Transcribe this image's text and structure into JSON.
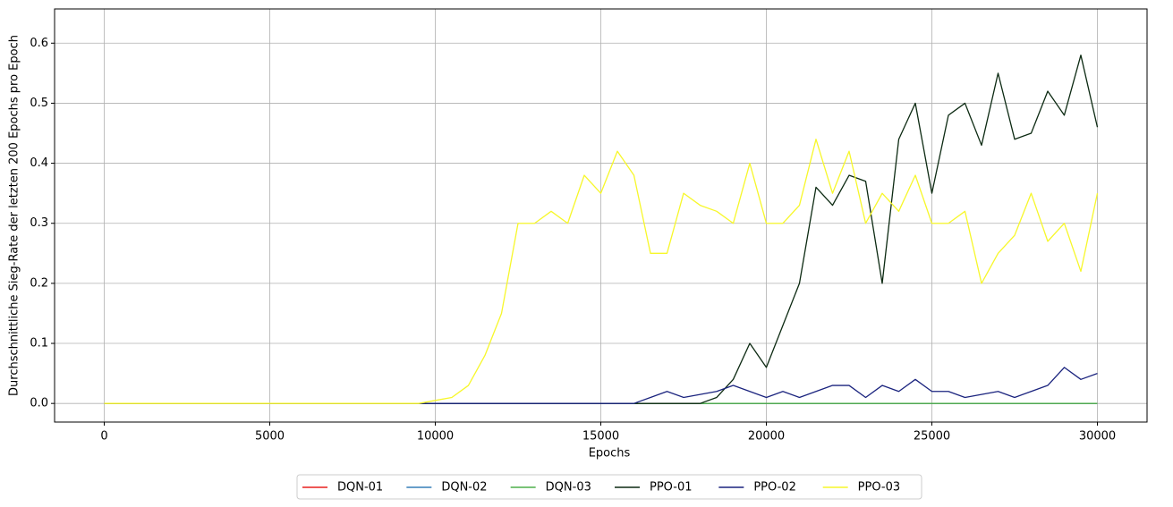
{
  "chart_data": {
    "type": "line",
    "xlabel": "Epochs",
    "ylabel": "Durchschnittliche Sieg-Rate der letzten 200 Epochs pro Epoch",
    "x": [
      0,
      500,
      1000,
      1500,
      2000,
      2500,
      3000,
      3500,
      4000,
      4500,
      5000,
      5500,
      6000,
      6500,
      7000,
      7500,
      8000,
      8500,
      9000,
      9500,
      10000,
      10500,
      11000,
      11500,
      12000,
      12500,
      13000,
      13500,
      14000,
      14500,
      15000,
      15500,
      16000,
      16500,
      17000,
      17500,
      18000,
      18500,
      19000,
      19500,
      20000,
      20500,
      21000,
      21500,
      22000,
      22500,
      23000,
      23500,
      24000,
      24500,
      25000,
      25500,
      26000,
      26500,
      27000,
      27500,
      28000,
      28500,
      29000,
      29500,
      30000
    ],
    "series": [
      {
        "name": "DQN-01",
        "color": "#e8201e",
        "values": [
          0,
          0,
          0,
          0,
          0,
          0,
          0,
          0,
          0,
          0,
          0,
          0,
          0,
          0,
          0,
          0,
          0,
          0,
          0,
          0,
          0,
          0,
          0,
          0,
          0,
          0,
          0,
          0,
          0,
          0,
          0,
          0,
          0,
          0,
          0,
          0,
          0,
          0,
          0,
          0,
          0,
          0,
          0,
          0,
          0,
          0,
          0,
          0,
          0,
          0,
          0,
          0,
          0,
          0,
          0,
          0,
          0,
          0,
          0,
          0,
          0
        ]
      },
      {
        "name": "DQN-02",
        "color": "#377eb8",
        "values": [
          0,
          0,
          0,
          0,
          0,
          0,
          0,
          0,
          0,
          0,
          0,
          0,
          0,
          0,
          0,
          0,
          0,
          0,
          0,
          0,
          0,
          0,
          0,
          0,
          0,
          0,
          0,
          0,
          0,
          0,
          0,
          0,
          0,
          0,
          0,
          0,
          0,
          0,
          0,
          0,
          0,
          0,
          0,
          0,
          0,
          0,
          0,
          0,
          0,
          0,
          0,
          0,
          0,
          0,
          0,
          0,
          0,
          0,
          0,
          0,
          0
        ]
      },
      {
        "name": "DQN-03",
        "color": "#4daf4a",
        "values": [
          0,
          0,
          0,
          0,
          0,
          0,
          0,
          0,
          0,
          0,
          0,
          0,
          0,
          0,
          0,
          0,
          0,
          0,
          0,
          0,
          0,
          0,
          0,
          0,
          0,
          0,
          0,
          0,
          0,
          0,
          0,
          0,
          0,
          0,
          0,
          0,
          0,
          0,
          0,
          0,
          0,
          0,
          0,
          0,
          0,
          0,
          0,
          0,
          0,
          0,
          0,
          0,
          0,
          0,
          0,
          0,
          0,
          0,
          0,
          0,
          0
        ]
      },
      {
        "name": "PPO-01",
        "color": "#0c2a12",
        "values": [
          0,
          0,
          0,
          0,
          0,
          0,
          0,
          0,
          0,
          0,
          0,
          0,
          0,
          0,
          0,
          0,
          0,
          0,
          0,
          0,
          0,
          0,
          0,
          0,
          0,
          0,
          0,
          0,
          0,
          0,
          0,
          0,
          0,
          0,
          0,
          0,
          0,
          0.01,
          0.04,
          0.1,
          0.06,
          0.13,
          0.2,
          0.36,
          0.33,
          0.38,
          0.37,
          0.2,
          0.44,
          0.5,
          0.35,
          0.48,
          0.5,
          0.43,
          0.55,
          0.44,
          0.45,
          0.52,
          0.48,
          0.58,
          0.46
        ]
      },
      {
        "name": "PPO-02",
        "color": "#1a237e",
        "values": [
          0,
          0,
          0,
          0,
          0,
          0,
          0,
          0,
          0,
          0,
          0,
          0,
          0,
          0,
          0,
          0,
          0,
          0,
          0,
          0,
          0,
          0,
          0,
          0,
          0,
          0,
          0,
          0,
          0,
          0,
          0,
          0,
          0,
          0.01,
          0.02,
          0.01,
          0.015,
          0.02,
          0.03,
          0.02,
          0.01,
          0.02,
          0.01,
          0.02,
          0.03,
          0.03,
          0.01,
          0.03,
          0.02,
          0.04,
          0.02,
          0.02,
          0.01,
          0.015,
          0.02,
          0.01,
          0.02,
          0.03,
          0.06,
          0.04,
          0.05
        ]
      },
      {
        "name": "PPO-03",
        "color": "#f7f72a",
        "values": [
          0,
          0,
          0,
          0,
          0,
          0,
          0,
          0,
          0,
          0,
          0,
          0,
          0,
          0,
          0,
          0,
          0,
          0,
          0,
          0,
          0.005,
          0.01,
          0.03,
          0.08,
          0.15,
          0.3,
          0.3,
          0.32,
          0.3,
          0.38,
          0.35,
          0.42,
          0.38,
          0.25,
          0.25,
          0.35,
          0.33,
          0.32,
          0.3,
          0.4,
          0.3,
          0.3,
          0.33,
          0.44,
          0.35,
          0.42,
          0.3,
          0.35,
          0.32,
          0.38,
          0.3,
          0.3,
          0.32,
          0.2,
          0.25,
          0.28,
          0.35,
          0.27,
          0.3,
          0.22,
          0.35
        ]
      }
    ],
    "xlim": [
      -1500,
      31500
    ],
    "ylim": [
      -0.031,
      0.657
    ],
    "xticks": [
      0,
      5000,
      10000,
      15000,
      20000,
      25000,
      30000
    ],
    "yticks": [
      {
        "value": 0,
        "label": "0.0"
      },
      0.1,
      0.2,
      0.3,
      0.4,
      0.5,
      0.6
    ],
    "grid": true,
    "legend": "bottom"
  }
}
